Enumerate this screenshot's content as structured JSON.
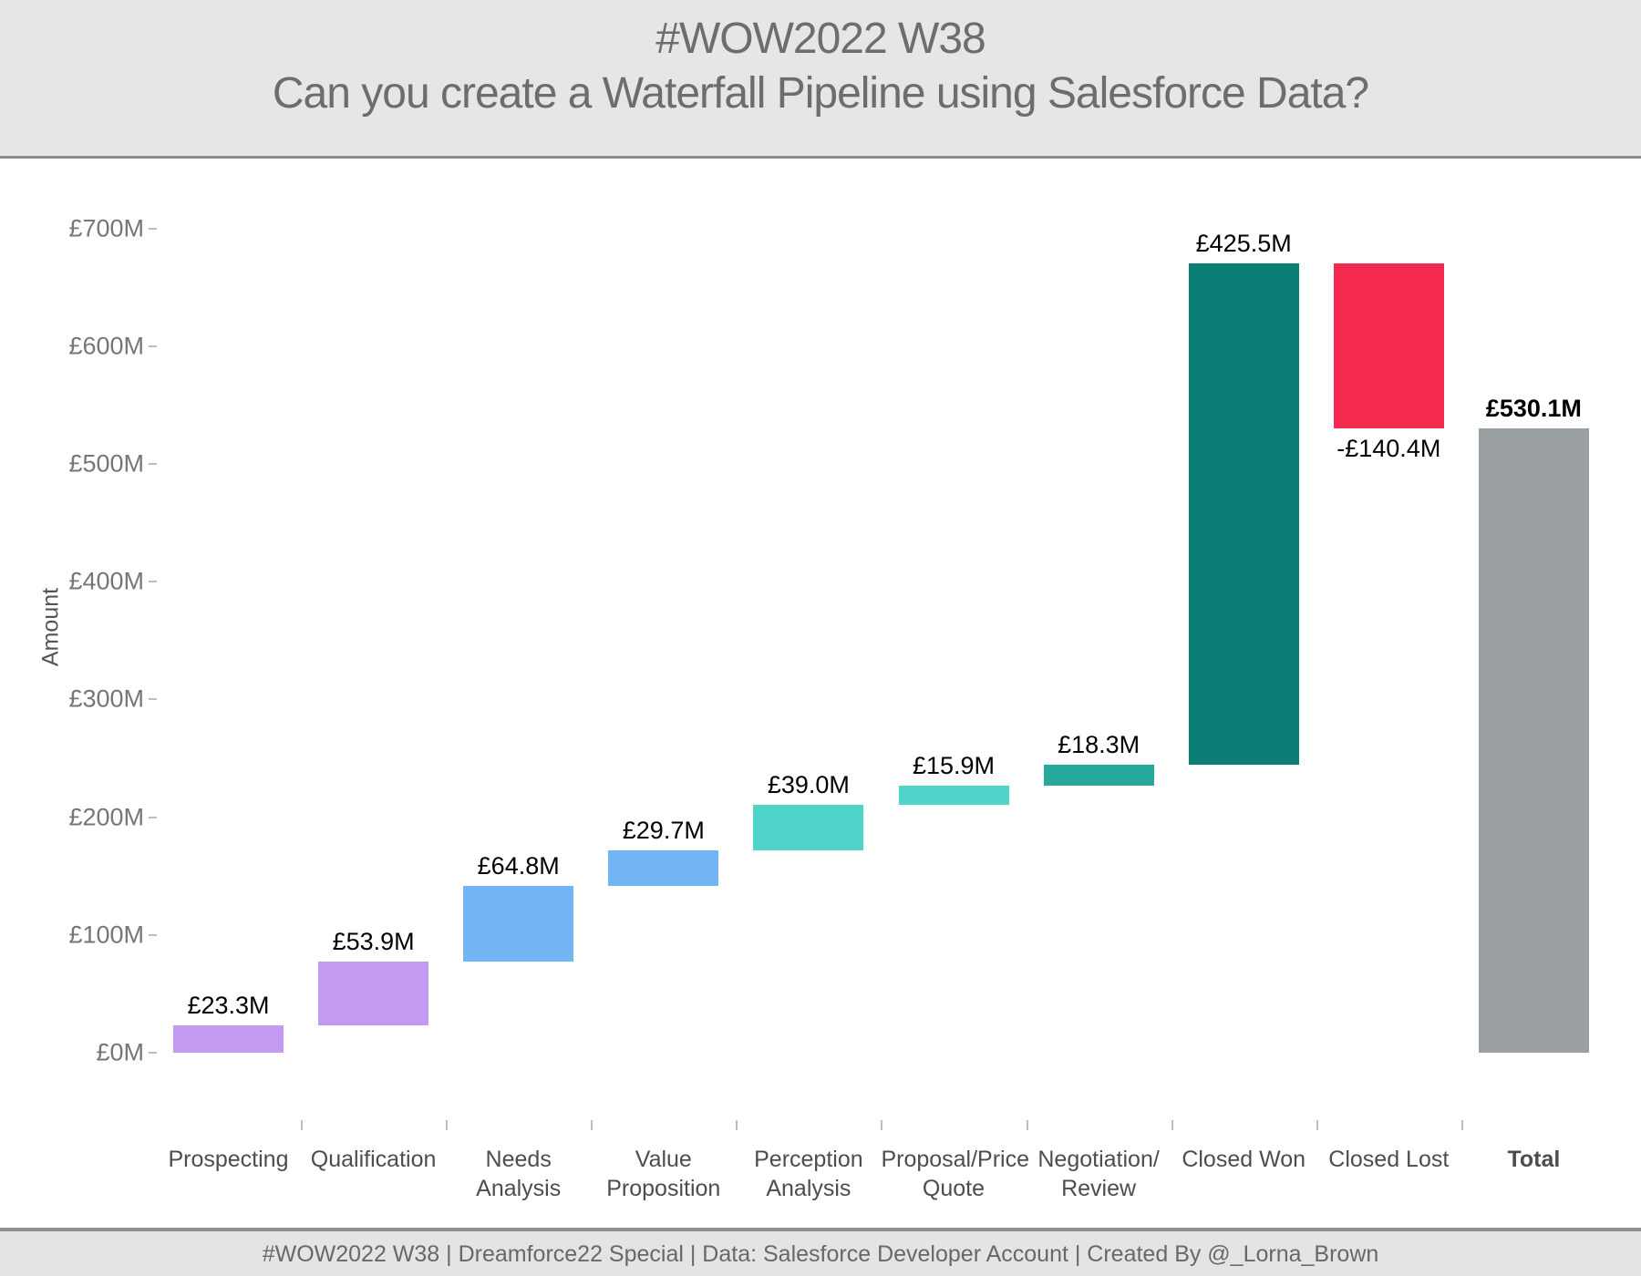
{
  "title": {
    "line1": "#WOW2022 W38",
    "line2": "Can you create a Waterfall Pipeline using Salesforce Data?"
  },
  "footer": {
    "caption": "#WOW2022 W38 | Dreamforce22 Special | Data: Salesforce Developer Account | Created By @_Lorna_Brown"
  },
  "chart_data": {
    "type": "bar",
    "subtype": "waterfall",
    "title": "#WOW2022 W38 Can you create a Waterfall Pipeline using Salesforce Data?",
    "xlabel": "",
    "ylabel": "Amount",
    "ylim": [
      0,
      700
    ],
    "grid": false,
    "legend": false,
    "currency_unit": "£M",
    "yticks": [
      {
        "value": 0,
        "label": "£0M"
      },
      {
        "value": 100,
        "label": "£100M"
      },
      {
        "value": 200,
        "label": "£200M"
      },
      {
        "value": 300,
        "label": "£300M"
      },
      {
        "value": 400,
        "label": "£400M"
      },
      {
        "value": 500,
        "label": "£500M"
      },
      {
        "value": 600,
        "label": "£600M"
      },
      {
        "value": 700,
        "label": "£700M"
      }
    ],
    "categories": [
      {
        "label": "Prospecting",
        "label_lines": [
          "Prospecting"
        ],
        "value": 23.3,
        "value_label": "£23.3M",
        "start": 0,
        "end": 23.3,
        "color": "#c29af1",
        "label_below": false,
        "bold": false
      },
      {
        "label": "Qualification",
        "label_lines": [
          "Qualification"
        ],
        "value": 53.9,
        "value_label": "£53.9M",
        "start": 23.3,
        "end": 77.2,
        "color": "#c29af1",
        "label_below": false,
        "bold": false
      },
      {
        "label": "Needs Analysis",
        "label_lines": [
          "Needs",
          "Analysis"
        ],
        "value": 64.8,
        "value_label": "£64.8M",
        "start": 77.2,
        "end": 142.0,
        "color": "#73b6f3",
        "label_below": false,
        "bold": false
      },
      {
        "label": "Value Proposition",
        "label_lines": [
          "Value",
          "Proposition"
        ],
        "value": 29.7,
        "value_label": "£29.7M",
        "start": 142.0,
        "end": 171.7,
        "color": "#73b6f3",
        "label_below": false,
        "bold": false
      },
      {
        "label": "Perception Analysis",
        "label_lines": [
          "Perception",
          "Analysis"
        ],
        "value": 39.0,
        "value_label": "£39.0M",
        "start": 171.7,
        "end": 210.7,
        "color": "#4ed4c8",
        "label_below": false,
        "bold": false
      },
      {
        "label": "Proposal/Price Quote",
        "label_lines": [
          "Proposal/Price",
          "Quote"
        ],
        "value": 15.9,
        "value_label": "£15.9M",
        "start": 210.7,
        "end": 226.6,
        "color": "#4ed4c8",
        "label_below": false,
        "bold": false
      },
      {
        "label": "Negotiation/Review",
        "label_lines": [
          "Negotiation/",
          "Review"
        ],
        "value": 18.3,
        "value_label": "£18.3M",
        "start": 226.6,
        "end": 244.9,
        "color": "#29a89c",
        "label_below": false,
        "bold": false
      },
      {
        "label": "Closed Won",
        "label_lines": [
          "Closed Won"
        ],
        "value": 425.5,
        "value_label": "£425.5M",
        "start": 244.9,
        "end": 670.4,
        "color": "#0a7d74",
        "label_below": false,
        "bold": false
      },
      {
        "label": "Closed Lost",
        "label_lines": [
          "Closed Lost"
        ],
        "value": -140.4,
        "value_label": "-£140.4M",
        "start": 670.4,
        "end": 530.0,
        "color": "#f4294f",
        "label_below": true,
        "bold": false
      },
      {
        "label": "Total",
        "label_lines": [
          "Total"
        ],
        "value": 530.1,
        "value_label": "£530.1M",
        "start": 0,
        "end": 530.1,
        "color": "#9aa0a2",
        "label_below": false,
        "bold": true
      }
    ]
  }
}
